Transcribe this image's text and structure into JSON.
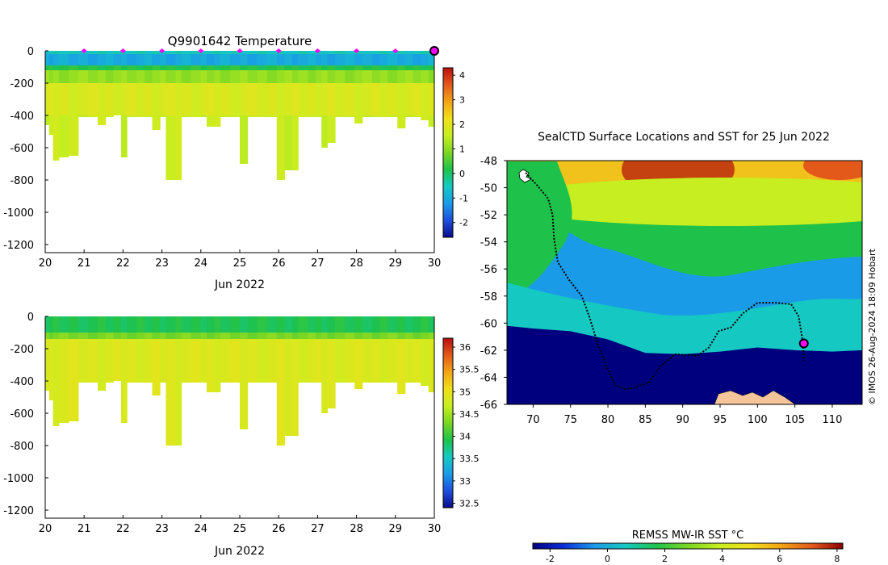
{
  "colors": {
    "temperature_ramp": [
      "#0b0b8c",
      "#1f4fdc",
      "#1a9be8",
      "#15c9c2",
      "#1ec24a",
      "#7ad625",
      "#c6ee20",
      "#f1e01a",
      "#f2a416",
      "#e2591a",
      "#b8100f"
    ],
    "salinity_ramp": [
      "#0b0b8c",
      "#1f4fdc",
      "#1a9be8",
      "#15c9c2",
      "#1ec24a",
      "#7ad625",
      "#c6ee20",
      "#f1e01a",
      "#f2a416",
      "#e2591a",
      "#b8100f"
    ],
    "sst_ramp": [
      "#00007f",
      "#0a2fd8",
      "#1a9be8",
      "#15c9c2",
      "#1ec24a",
      "#7ad625",
      "#c6ee20",
      "#f1e01a",
      "#f2a416",
      "#e2591a",
      "#8b0000"
    ],
    "profile_marker": "#ff00ff",
    "track": "#000000",
    "land": "#f4c49a"
  },
  "chart_data": [
    {
      "id": "temperature_section",
      "type": "heatmap",
      "title": "Q9901642  Temperature",
      "xlabel": "Jun 2022",
      "ylabel": "",
      "xlim": [
        20,
        30
      ],
      "ylim": [
        -1250,
        0
      ],
      "xticks": [
        "20",
        "21",
        "22",
        "23",
        "24",
        "25",
        "26",
        "27",
        "28",
        "29",
        "30"
      ],
      "yticks": [
        "0",
        "-200",
        "-400",
        "-600",
        "-800",
        "-1000",
        "-1200"
      ],
      "colorbar": {
        "range": [
          -2.6,
          4.3
        ],
        "ticks": [
          "-2",
          "-1",
          "0",
          "1",
          "2",
          "3",
          "4"
        ]
      },
      "profile_marker_days": [
        21,
        22,
        23,
        24,
        25,
        26,
        27,
        28,
        29
      ],
      "last_profile_day": 30,
      "profiles": [
        {
          "day": 20.0,
          "depth": 460
        },
        {
          "day": 20.1,
          "depth": 520
        },
        {
          "day": 20.2,
          "depth": 680
        },
        {
          "day": 20.35,
          "depth": 660
        },
        {
          "day": 20.6,
          "depth": 650
        },
        {
          "day": 20.85,
          "depth": 410
        },
        {
          "day": 21.1,
          "depth": 410
        },
        {
          "day": 21.35,
          "depth": 460
        },
        {
          "day": 21.55,
          "depth": 410
        },
        {
          "day": 21.75,
          "depth": 400
        },
        {
          "day": 21.95,
          "depth": 660
        },
        {
          "day": 22.1,
          "depth": 410
        },
        {
          "day": 22.35,
          "depth": 410
        },
        {
          "day": 22.55,
          "depth": 410
        },
        {
          "day": 22.75,
          "depth": 490
        },
        {
          "day": 22.95,
          "depth": 410
        },
        {
          "day": 23.1,
          "depth": 800
        },
        {
          "day": 23.35,
          "depth": 800
        },
        {
          "day": 23.5,
          "depth": 410
        },
        {
          "day": 23.75,
          "depth": 410
        },
        {
          "day": 24.0,
          "depth": 410
        },
        {
          "day": 24.15,
          "depth": 470
        },
        {
          "day": 24.35,
          "depth": 470
        },
        {
          "day": 24.5,
          "depth": 410
        },
        {
          "day": 24.75,
          "depth": 410
        },
        {
          "day": 25.0,
          "depth": 700
        },
        {
          "day": 25.2,
          "depth": 410
        },
        {
          "day": 25.45,
          "depth": 410
        },
        {
          "day": 25.7,
          "depth": 410
        },
        {
          "day": 25.95,
          "depth": 800
        },
        {
          "day": 26.15,
          "depth": 740
        },
        {
          "day": 26.35,
          "depth": 740
        },
        {
          "day": 26.5,
          "depth": 410
        },
        {
          "day": 26.75,
          "depth": 410
        },
        {
          "day": 26.95,
          "depth": 410
        },
        {
          "day": 27.1,
          "depth": 600
        },
        {
          "day": 27.25,
          "depth": 570
        },
        {
          "day": 27.45,
          "depth": 410
        },
        {
          "day": 27.7,
          "depth": 410
        },
        {
          "day": 27.95,
          "depth": 450
        },
        {
          "day": 28.15,
          "depth": 410
        },
        {
          "day": 28.4,
          "depth": 410
        },
        {
          "day": 28.6,
          "depth": 410
        },
        {
          "day": 28.8,
          "depth": 410
        },
        {
          "day": 29.05,
          "depth": 480
        },
        {
          "day": 29.25,
          "depth": 410
        },
        {
          "day": 29.45,
          "depth": 410
        },
        {
          "day": 29.65,
          "depth": 430
        },
        {
          "day": 29.85,
          "depth": 470
        }
      ],
      "layers": [
        {
          "top": 0,
          "bottom": 20,
          "value": -0.5
        },
        {
          "top": 20,
          "bottom": 90,
          "value": -1.0
        },
        {
          "top": 90,
          "bottom": 120,
          "value": 0.2
        },
        {
          "top": 120,
          "bottom": 200,
          "value": 1.1
        },
        {
          "top": 200,
          "bottom": 400,
          "value": 1.8
        },
        {
          "top": 400,
          "bottom": 1300,
          "value": 1.6
        }
      ]
    },
    {
      "id": "salinity_section",
      "type": "heatmap",
      "title": "",
      "xlabel": "Jun 2022",
      "ylabel": "",
      "xlim": [
        20,
        30
      ],
      "ylim": [
        -1250,
        0
      ],
      "xticks": [
        "20",
        "21",
        "22",
        "23",
        "24",
        "25",
        "26",
        "27",
        "28",
        "29",
        "30"
      ],
      "yticks": [
        "0",
        "-200",
        "-400",
        "-600",
        "-800",
        "-1000",
        "-1200"
      ],
      "colorbar": {
        "range": [
          32.4,
          36.2
        ],
        "ticks": [
          "32.5",
          "33",
          "33.5",
          "34",
          "34.5",
          "35",
          "35.5",
          "36"
        ]
      },
      "layers": [
        {
          "top": 0,
          "bottom": 100,
          "value": 33.9
        },
        {
          "top": 100,
          "bottom": 140,
          "value": 34.3
        },
        {
          "top": 140,
          "bottom": 1300,
          "value": 34.85
        }
      ]
    },
    {
      "id": "sst_map",
      "type": "heatmap",
      "title": "SealCTD Surface Locations and SST for 25 Jun 2022",
      "xlabel": "",
      "ylabel": "",
      "xlim": [
        66.5,
        114
      ],
      "ylim": [
        -66,
        -48
      ],
      "xticks": [
        "70",
        "75",
        "80",
        "85",
        "90",
        "95",
        "100",
        "105",
        "110"
      ],
      "yticks": [
        "-48",
        "-50",
        "-52",
        "-54",
        "-56",
        "-58",
        "-60",
        "-62",
        "-64",
        "-66"
      ],
      "sea_ice_edge": [
        [
          66.5,
          -60.2
        ],
        [
          70,
          -60.4
        ],
        [
          75,
          -60.6
        ],
        [
          80,
          -61.2
        ],
        [
          85,
          -62.2
        ],
        [
          90,
          -62.3
        ],
        [
          95,
          -62.1
        ],
        [
          100,
          -61.8
        ],
        [
          105,
          -62.0
        ],
        [
          110,
          -62.1
        ],
        [
          114,
          -62.0
        ]
      ],
      "track": [
        [
          69.0,
          -48.9
        ],
        [
          70.5,
          -49.8
        ],
        [
          72.0,
          -50.8
        ],
        [
          72.6,
          -52.0
        ],
        [
          72.8,
          -53.8
        ],
        [
          73.3,
          -55.5
        ],
        [
          74.8,
          -56.8
        ],
        [
          76.5,
          -58.0
        ],
        [
          77.5,
          -59.5
        ],
        [
          78.5,
          -61.3
        ],
        [
          79.8,
          -63.2
        ],
        [
          81.0,
          -64.6
        ],
        [
          82.5,
          -64.9
        ],
        [
          85.5,
          -64.4
        ],
        [
          87.0,
          -63.2
        ],
        [
          89.0,
          -62.3
        ],
        [
          92.0,
          -62.4
        ],
        [
          93.5,
          -61.8
        ],
        [
          94.8,
          -60.6
        ],
        [
          96.5,
          -60.3
        ],
        [
          98.0,
          -59.3
        ],
        [
          100.0,
          -58.5
        ],
        [
          102.5,
          -58.5
        ],
        [
          104.5,
          -58.6
        ],
        [
          105.5,
          -59.5
        ],
        [
          105.8,
          -60.5
        ],
        [
          106.1,
          -61.5
        ],
        [
          106.2,
          -62.8
        ]
      ],
      "current_location": [
        106.2,
        -61.5
      ],
      "colorbar": {
        "label": "REMSS MW-IR SST °C",
        "range": [
          -2.6,
          8.2
        ],
        "ticks": [
          "-2",
          "0",
          "2",
          "4",
          "6",
          "8"
        ]
      },
      "credit": "© IMOS 26-Aug-2024 18:09 Hobart"
    }
  ]
}
